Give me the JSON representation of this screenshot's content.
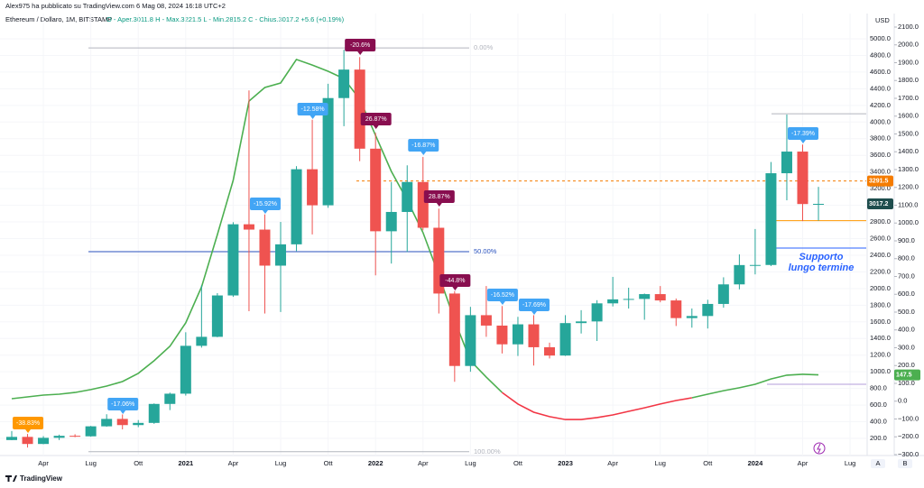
{
  "header": {
    "published": "Alex975 ha pubblicato su TradingView.com 6 Mag 08, 2024 16:18 UTC+2",
    "symbol": "Ethereum / Dollaro, 1M, BITSTAMP",
    "ohlc": "O - Aper.3011.8   H - Max.3221.5   L - Min.2815.2   C - Chius.3017.2  +5.6 (+0.19%)"
  },
  "footer": {
    "brand": "TradingView",
    "axis_a": "A",
    "axis_b": "B"
  },
  "chart_data": {
    "type": "candlestick",
    "currency": "USD",
    "categories": [
      null,
      null,
      "Apr",
      null,
      null,
      "Lug",
      null,
      null,
      "Ott",
      null,
      null,
      "2021",
      null,
      null,
      "Apr",
      null,
      null,
      "Lug",
      null,
      null,
      "Ott",
      null,
      null,
      "2022",
      null,
      null,
      "Apr",
      null,
      null,
      "Lug",
      null,
      null,
      "Ott",
      null,
      null,
      "2023",
      null,
      null,
      "Apr",
      null,
      null,
      "Lug",
      null,
      null,
      "Ott",
      null,
      null,
      "2024",
      null,
      null,
      "Apr",
      null,
      null,
      "Lug",
      null
    ],
    "open": [
      180,
      218,
      133,
      207,
      231,
      225,
      345,
      434,
      360,
      386,
      614,
      737,
      1312,
      1420,
      1917,
      2772,
      2708,
      2275,
      2531,
      3433,
      3000,
      4288,
      4630,
      3680,
      2688,
      2920,
      3280,
      2730,
      1940,
      1070,
      1680,
      1555,
      1330,
      1570,
      1295,
      1195,
      1585,
      1605,
      1822,
      1870,
      1875,
      1933,
      1857,
      1645,
      1670,
      1815,
      2050,
      2282,
      2283,
      3385,
      3645,
      3011.8,
      null,
      null,
      null
    ],
    "high": [
      288,
      253,
      227,
      245,
      250,
      350,
      490,
      488,
      420,
      620,
      750,
      1475,
      2040,
      1945,
      2797,
      4380,
      2891,
      2800,
      3470,
      4028,
      4460,
      4868,
      4780,
      3870,
      3280,
      3480,
      3580,
      2960,
      1970,
      1780,
      2030,
      1790,
      1660,
      1680,
      1350,
      1680,
      1740,
      1860,
      2140,
      2010,
      1940,
      2030,
      1880,
      1760,
      1865,
      2135,
      2410,
      2715,
      3520,
      4090,
      3730,
      3221.5,
      null,
      null,
      null
    ],
    "low": [
      178,
      90,
      130,
      180,
      215,
      220,
      340,
      308,
      335,
      375,
      540,
      714,
      1290,
      1415,
      1900,
      1728,
      1700,
      1718,
      2450,
      2650,
      2970,
      3950,
      3530,
      2159,
      2300,
      2440,
      2700,
      1700,
      880,
      1000,
      1420,
      1220,
      1190,
      1075,
      1160,
      1190,
      1460,
      1370,
      1785,
      1760,
      1625,
      1835,
      1550,
      1530,
      1520,
      1770,
      1990,
      2170,
      2270,
      3060,
      2810,
      2815.2,
      null,
      null,
      null
    ],
    "close": [
      218,
      133,
      207,
      231,
      225,
      345,
      434,
      360,
      386,
      614,
      737,
      1312,
      1420,
      1917,
      2772,
      2708,
      2275,
      2531,
      3433,
      3000,
      4288,
      4630,
      3680,
      2688,
      2920,
      3280,
      2730,
      1940,
      1070,
      1680,
      1555,
      1330,
      1570,
      1295,
      1195,
      1585,
      1605,
      1822,
      1870,
      1875,
      1933,
      1857,
      1645,
      1670,
      1815,
      2050,
      2282,
      2283,
      3385,
      3645,
      3015,
      3017.2,
      null,
      null,
      null
    ],
    "up_color": "#26a69a",
    "down_color": "#ef5350",
    "ylim": [
      5000,
      200
    ],
    "yticks": [
      {
        "value": 5000,
        "label": "5000.0"
      },
      {
        "value": 4800,
        "label": "4800.0"
      },
      {
        "value": 4600,
        "label": "4600.0"
      },
      {
        "value": 4400,
        "label": "4400.0"
      },
      {
        "value": 4200,
        "label": "4200.0"
      },
      {
        "value": 4000,
        "label": "4000.0"
      },
      {
        "value": 3800,
        "label": "3800.0"
      },
      {
        "value": 3600,
        "label": "3600.0"
      },
      {
        "value": 3400,
        "label": "3400.0"
      },
      {
        "value": 3200,
        "label": "3200.0"
      },
      {
        "value": 3000,
        "label": "3000.0"
      },
      {
        "value": 2800,
        "label": "2800.0"
      },
      {
        "value": 2600,
        "label": "2600.0"
      },
      {
        "value": 2400,
        "label": "2400.0"
      },
      {
        "value": 2200,
        "label": "2200.0"
      },
      {
        "value": 2000,
        "label": "2000.0"
      },
      {
        "value": 1800,
        "label": "1800.0"
      },
      {
        "value": 1600,
        "label": "1600.0"
      },
      {
        "value": 1400,
        "label": "1400.0"
      },
      {
        "value": 1200,
        "label": "1200.0"
      },
      {
        "value": 1000,
        "label": "1000.0"
      },
      {
        "value": 800,
        "label": "800.0"
      },
      {
        "value": 600,
        "label": "600.0"
      },
      {
        "value": 400,
        "label": "400.0"
      },
      {
        "value": 200,
        "label": "200.0"
      }
    ],
    "y2lim": [
      2100,
      -300
    ],
    "y2ticks": [
      {
        "value": 2100,
        "label": "2100.0"
      },
      {
        "value": 2000,
        "label": "2000.0"
      },
      {
        "value": 1900,
        "label": "1900.0"
      },
      {
        "value": 1800,
        "label": "1800.0"
      },
      {
        "value": 1700,
        "label": "1700.0"
      },
      {
        "value": 1600,
        "label": "1600.0"
      },
      {
        "value": 1500,
        "label": "1500.0"
      },
      {
        "value": 1400,
        "label": "1400.0"
      },
      {
        "value": 1300,
        "label": "1300.0"
      },
      {
        "value": 1200,
        "label": "1200.0"
      },
      {
        "value": 1100,
        "label": "1100.0"
      },
      {
        "value": 1000,
        "label": "1000.0"
      },
      {
        "value": 900,
        "label": "900.0"
      },
      {
        "value": 800,
        "label": "800.0"
      },
      {
        "value": 700,
        "label": "700.0"
      },
      {
        "value": 600,
        "label": "600.0"
      },
      {
        "value": 500,
        "label": "500.0"
      },
      {
        "value": 400,
        "label": "400.0"
      },
      {
        "value": 300,
        "label": "300.0"
      },
      {
        "value": 200,
        "label": "200.0"
      },
      {
        "value": 100,
        "label": "100.0"
      },
      {
        "value": 0,
        "label": "0.0"
      },
      {
        "value": -100,
        "label": "−100.0"
      },
      {
        "value": -200,
        "label": "−200.0"
      },
      {
        "value": -300,
        "label": "−300.0"
      }
    ],
    "grid": true,
    "series": [
      {
        "color": "#4caf50",
        "axis": "y2",
        "values": [
          14,
          24,
          34,
          39,
          49,
          65,
          85,
          110,
          156,
          227,
          308,
          439,
          642,
          935,
          1239,
          1685,
          1761,
          1786,
          1918,
          1887,
          1852,
          1811,
          1695,
          1492,
          1290,
          1128,
          946,
          708,
          454,
          227,
          135,
          49,
          null,
          null,
          null,
          null,
          null,
          null,
          null,
          null,
          null,
          null,
          null,
          19,
          39,
          59,
          75,
          95,
          125,
          146,
          151,
          147.5,
          null,
          null,
          null
        ]
      },
      {
        "color": "#f23645",
        "axis": "y2",
        "values": [
          null,
          null,
          null,
          null,
          null,
          null,
          null,
          null,
          null,
          null,
          null,
          null,
          null,
          null,
          null,
          null,
          null,
          null,
          null,
          null,
          null,
          null,
          null,
          null,
          null,
          null,
          null,
          null,
          null,
          null,
          null,
          49,
          -16,
          -62,
          -87,
          -103,
          -103,
          -92,
          -77,
          -57,
          -37,
          -16,
          4,
          19,
          null,
          null,
          null,
          null,
          null,
          null,
          null,
          null,
          null,
          null,
          null
        ]
      }
    ],
    "fib_levels": [
      {
        "label": "0.00%",
        "value": 4890,
        "color": "#b2b5be"
      },
      {
        "label": "50.00%",
        "value": 2443,
        "color": "#2a52be"
      },
      {
        "label": "100.00%",
        "value": 40,
        "color": "#b2b5be"
      }
    ],
    "price_line": {
      "value": 3291.5,
      "color": "#f57c00"
    },
    "last_price_color": "#1e4d4d",
    "support": {
      "value": 2486,
      "color": "#2962ff",
      "note": [
        "Supporto",
        "lungo termine"
      ]
    },
    "low_line": {
      "value": 2815.2,
      "color": "#ff9800"
    },
    "high_line": {
      "value": 4100,
      "color": "#b2b5be"
    },
    "y2_line": {
      "value": 95,
      "color": "#b39ddb"
    },
    "annotations": [
      {
        "text": "-38.83%",
        "color": "#ff9800"
      },
      {
        "text": "-17.06%",
        "color": "#42a5f5"
      },
      {
        "text": "-15.92%",
        "color": "#42a5f5"
      },
      {
        "text": "-12.58%",
        "color": "#42a5f5"
      },
      {
        "text": "-20.6%",
        "color": "#880e4f"
      },
      {
        "text": "26.87%",
        "color": "#880e4f"
      },
      {
        "text": "-16.87%",
        "color": "#42a5f5"
      },
      {
        "text": "28.87%",
        "color": "#880e4f"
      },
      {
        "text": "-44.8%",
        "color": "#880e4f"
      },
      {
        "text": "-16.52%",
        "color": "#42a5f5"
      },
      {
        "text": "-17.69%",
        "color": "#42a5f5"
      },
      {
        "text": "-17.39%",
        "color": "#42a5f5"
      }
    ]
  }
}
